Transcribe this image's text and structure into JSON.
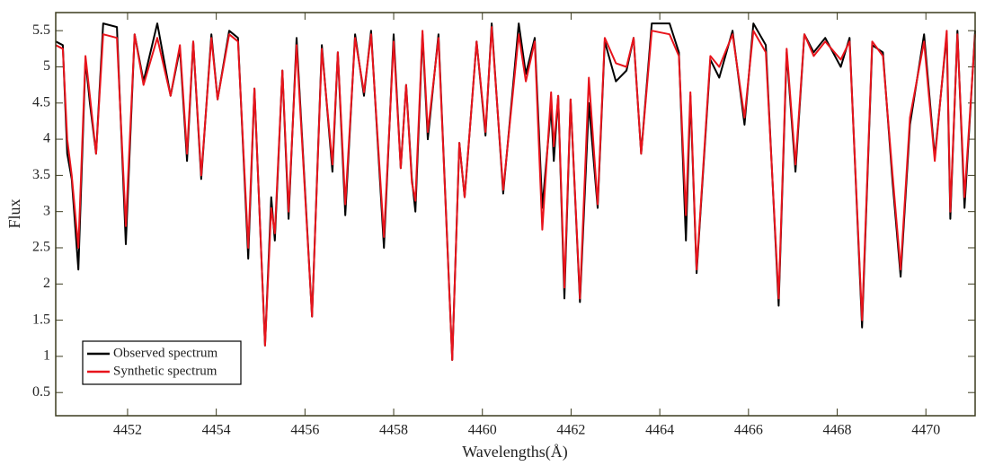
{
  "chart_data": {
    "type": "line",
    "xlabel": "Wavelengths(Å)",
    "ylabel": "Flux",
    "x": [
      4450.38,
      4450.54,
      4450.64,
      4450.74,
      4450.89,
      4451.05,
      4451.15,
      4451.29,
      4451.45,
      4451.76,
      4451.96,
      4452.16,
      4452.36,
      4452.67,
      4452.97,
      4453.18,
      4453.34,
      4453.48,
      4453.66,
      4453.89,
      4454.03,
      4454.29,
      4454.49,
      4454.72,
      4454.86,
      4455.1,
      4455.24,
      4455.32,
      4455.49,
      4455.63,
      4455.81,
      4456.16,
      4456.38,
      4456.62,
      4456.74,
      4456.91,
      4457.13,
      4457.33,
      4457.49,
      4457.78,
      4458.0,
      4458.16,
      4458.28,
      4458.41,
      4458.49,
      4458.65,
      4458.77,
      4459.01,
      4459.32,
      4459.48,
      4459.6,
      4459.87,
      4460.07,
      4460.21,
      4460.47,
      4460.82,
      4460.98,
      4461.18,
      4461.35,
      4461.55,
      4461.61,
      4461.71,
      4461.85,
      4461.99,
      4462.2,
      4462.4,
      4462.6,
      4462.76,
      4463.01,
      4463.25,
      4463.41,
      4463.58,
      4463.82,
      4464.22,
      4464.43,
      4464.59,
      4464.69,
      4464.83,
      4465.14,
      4465.34,
      4465.64,
      4465.91,
      4466.11,
      4466.39,
      4466.68,
      4466.86,
      4467.06,
      4467.26,
      4467.47,
      4467.73,
      4468.08,
      4468.28,
      4468.56,
      4468.79,
      4469.03,
      4469.25,
      4469.43,
      4469.64,
      4469.96,
      4470.2,
      4470.47,
      4470.55,
      4470.71,
      4470.87,
      4471.11
    ],
    "series": [
      {
        "name": "Observed spectrum",
        "color": "#000000",
        "values": [
          5.35,
          5.3,
          3.8,
          3.45,
          2.2,
          5.1,
          4.5,
          3.8,
          5.6,
          5.55,
          2.55,
          5.45,
          4.8,
          5.6,
          4.6,
          5.25,
          3.7,
          5.35,
          3.45,
          5.45,
          4.55,
          5.5,
          5.4,
          2.35,
          4.7,
          1.15,
          3.2,
          2.6,
          4.95,
          2.9,
          5.4,
          1.55,
          5.3,
          3.55,
          5.2,
          2.95,
          5.45,
          4.6,
          5.5,
          2.5,
          5.45,
          3.6,
          4.75,
          3.45,
          3.0,
          5.45,
          4.0,
          5.45,
          0.95,
          3.95,
          3.2,
          5.35,
          4.05,
          5.6,
          3.25,
          5.6,
          4.9,
          5.4,
          3.05,
          4.45,
          3.7,
          4.6,
          1.8,
          4.55,
          1.75,
          4.5,
          3.05,
          5.35,
          4.8,
          4.95,
          5.4,
          3.8,
          5.6,
          5.6,
          5.2,
          2.6,
          4.6,
          2.15,
          5.1,
          4.85,
          5.5,
          4.2,
          5.6,
          5.3,
          1.7,
          5.2,
          3.55,
          5.45,
          5.2,
          5.4,
          5.0,
          5.4,
          1.4,
          5.3,
          5.2,
          3.4,
          2.1,
          4.2,
          5.45,
          3.75,
          5.45,
          2.9,
          5.5,
          3.05,
          5.5
        ]
      },
      {
        "name": "Synthetic spectrum",
        "color": "#e8141c",
        "values": [
          5.3,
          5.25,
          4.0,
          3.5,
          2.5,
          5.15,
          4.6,
          3.8,
          5.45,
          5.4,
          2.8,
          5.45,
          4.75,
          5.4,
          4.6,
          5.3,
          3.8,
          5.35,
          3.5,
          5.4,
          4.55,
          5.45,
          5.35,
          2.5,
          4.7,
          1.15,
          3.05,
          2.7,
          4.95,
          3.0,
          5.3,
          1.55,
          5.25,
          3.65,
          5.2,
          3.1,
          5.4,
          4.65,
          5.45,
          2.65,
          5.35,
          3.6,
          4.75,
          3.4,
          3.15,
          5.5,
          4.1,
          5.4,
          0.95,
          3.95,
          3.2,
          5.35,
          4.1,
          5.55,
          3.3,
          5.45,
          4.8,
          5.35,
          2.75,
          4.65,
          3.9,
          4.6,
          1.95,
          4.55,
          1.8,
          4.85,
          3.1,
          5.4,
          5.05,
          5.0,
          5.4,
          3.8,
          5.5,
          5.45,
          5.15,
          2.95,
          4.65,
          2.2,
          5.15,
          5.0,
          5.45,
          4.3,
          5.5,
          5.2,
          1.8,
          5.25,
          3.65,
          5.45,
          5.15,
          5.35,
          5.1,
          5.35,
          1.5,
          5.35,
          5.15,
          3.5,
          2.2,
          4.3,
          5.35,
          3.7,
          5.5,
          3.0,
          5.45,
          3.2,
          5.45
        ]
      }
    ],
    "xlim": [
      4450.38,
      4471.11
    ],
    "xticks": [
      4452,
      4454,
      4456,
      4458,
      4460,
      4462,
      4464,
      4466,
      4468,
      4470
    ],
    "ylim": [
      0.18,
      5.75
    ],
    "yticks": [
      0.5,
      1,
      1.5,
      2,
      2.5,
      3,
      3.5,
      4,
      4.5,
      5,
      5.5
    ],
    "grid": false,
    "legend": "lower left"
  }
}
